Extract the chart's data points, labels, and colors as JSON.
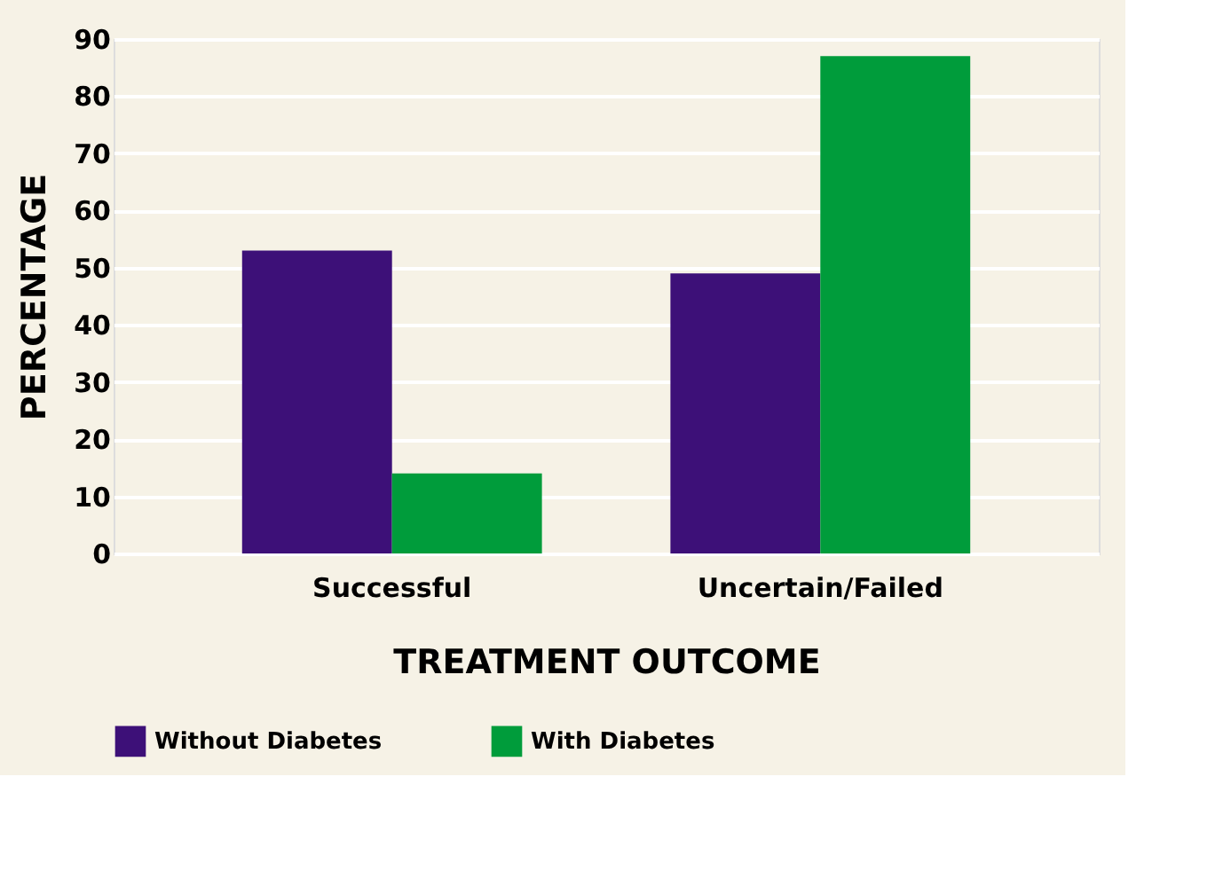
{
  "chart_data": {
    "type": "bar",
    "xlabel": "TREATMENT OUTCOME",
    "ylabel": "PERCENTAGE",
    "categories": [
      "Successful",
      "Uncertain/Failed"
    ],
    "series": [
      {
        "name": "Without Diabetes",
        "color": "#3d1078",
        "values": [
          53,
          49
        ]
      },
      {
        "name": "With Diabetes",
        "color": "#009c3b",
        "values": [
          14,
          87
        ]
      }
    ],
    "ylim": [
      0,
      90
    ],
    "yticks": [
      0,
      10,
      20,
      30,
      40,
      50,
      60,
      70,
      80,
      90
    ],
    "grid": "y",
    "legend": "bottom"
  }
}
